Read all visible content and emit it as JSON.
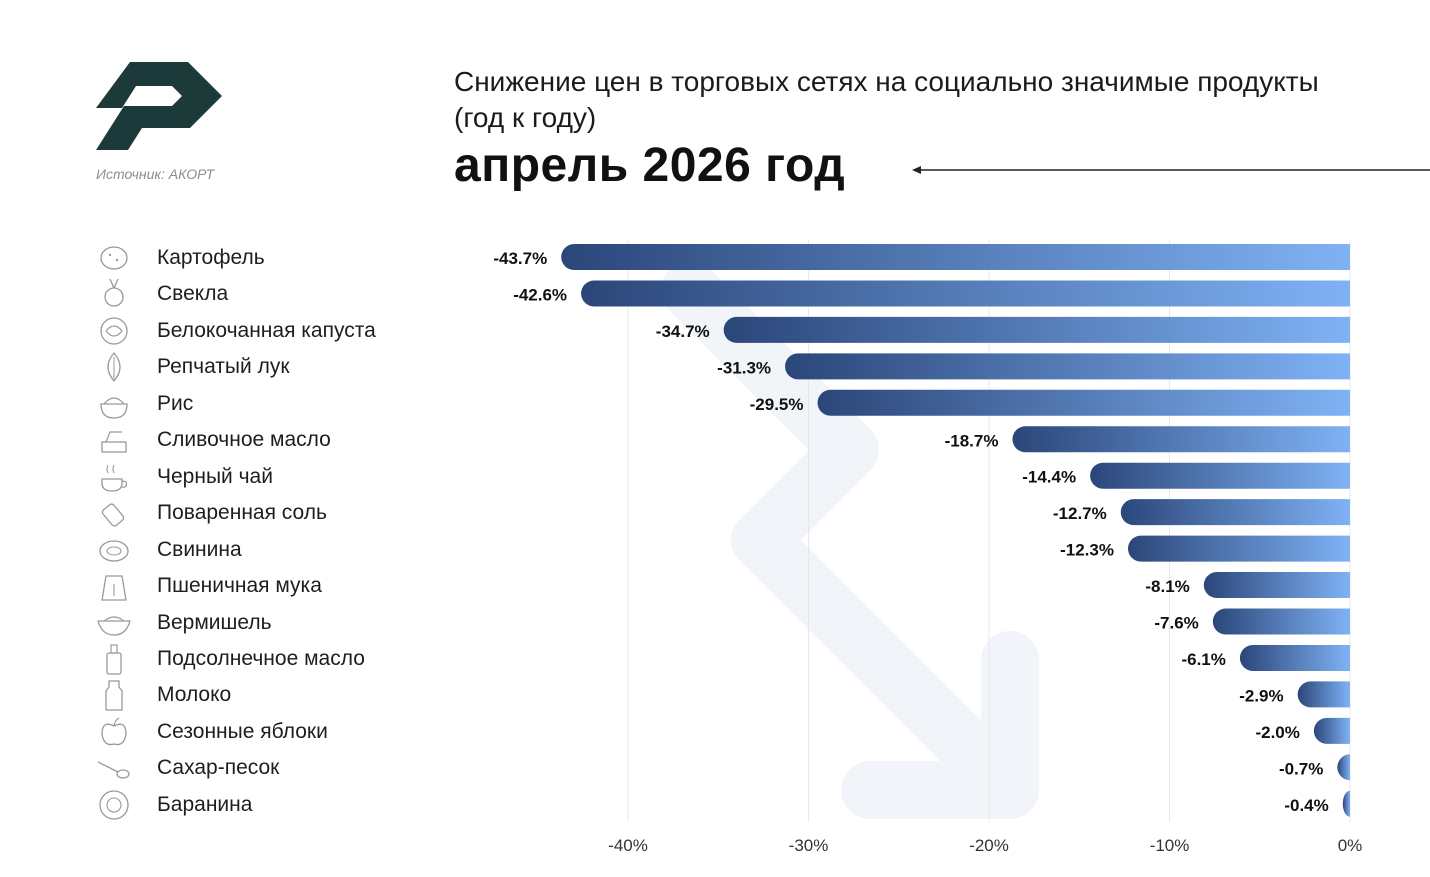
{
  "header": {
    "title": "Снижение цен в торговых сетях на социально значимые продукты (год к году)",
    "subtitle": "апрель 2026 год",
    "source": "Источник: АКОРТ"
  },
  "colors": {
    "logo": "#1d3a3a",
    "bar_start": "#2b4679",
    "bar_end": "#7fb2f5",
    "grid": "#e6e8ec",
    "text": "#1e1e1e"
  },
  "icons": [
    "potato-icon",
    "beet-icon",
    "cabbage-icon",
    "onion-icon",
    "rice-icon",
    "butter-icon",
    "tea-icon",
    "salt-icon",
    "pork-icon",
    "flour-icon",
    "noodles-icon",
    "oil-bottle-icon",
    "milk-icon",
    "apple-icon",
    "sugar-spoon-icon",
    "mutton-icon"
  ],
  "chart_data": {
    "type": "bar",
    "orientation": "horizontal",
    "categories": [
      "Картофель",
      "Свекла",
      "Белокочанная капуста",
      "Репчатый лук",
      "Рис",
      "Сливочное масло",
      "Черный чай",
      "Поваренная соль",
      "Свинина",
      "Пшеничная мука",
      "Вермишель",
      "Подсолнечное масло",
      "Молоко",
      "Сезонные яблоки",
      "Сахар-песок",
      "Баранина"
    ],
    "values": [
      -43.7,
      -42.6,
      -34.7,
      -31.3,
      -29.5,
      -18.7,
      -14.4,
      -12.7,
      -12.3,
      -8.1,
      -7.6,
      -6.1,
      -2.9,
      -2.0,
      -0.7,
      -0.4
    ],
    "data_labels": [
      "-43.7%",
      "-42.6%",
      "-34.7%",
      "-31.3%",
      "-29.5%",
      "-18.7%",
      "-14.4%",
      "-12.7%",
      "-12.3%",
      "-8.1%",
      "-7.6%",
      "-6.1%",
      "-2.9%",
      "-2.0%",
      "-0.7%",
      "-0.4%"
    ],
    "x_ticks": [
      -40,
      -30,
      -20,
      -10,
      0
    ],
    "x_tick_labels": [
      "-40%",
      "-30%",
      "-20%",
      "-10%",
      "0%"
    ],
    "xlim": [
      -43.7,
      0
    ],
    "grid": true,
    "legend": "none"
  }
}
